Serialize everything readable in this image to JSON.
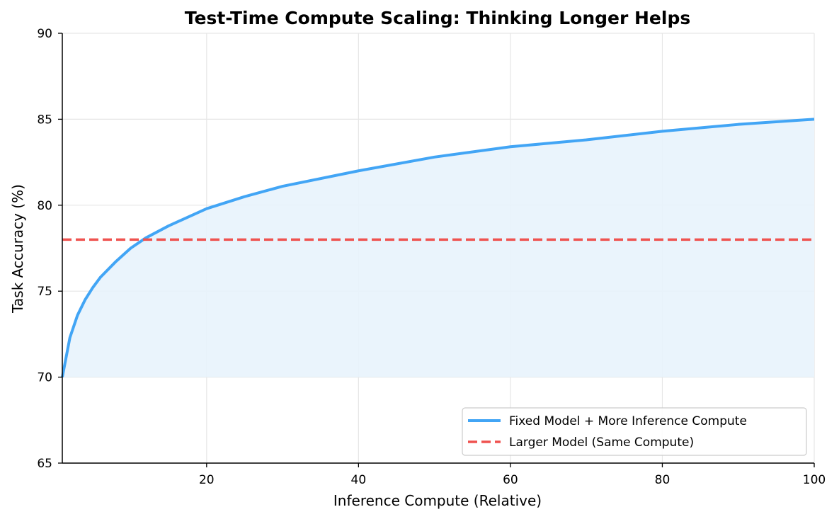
{
  "chart_data": {
    "type": "line",
    "title": "Test-Time Compute Scaling: Thinking Longer Helps",
    "xlabel": "Inference Compute (Relative)",
    "ylabel": "Task Accuracy (%)",
    "xlim": [
      1,
      100
    ],
    "ylim": [
      65,
      90
    ],
    "xticks": [
      20,
      40,
      60,
      80,
      100
    ],
    "yticks": [
      65,
      70,
      75,
      80,
      85,
      90
    ],
    "grid": true,
    "legend_position": "bottom-right",
    "fill_baseline": 70,
    "series": [
      {
        "name": "Fixed Model + More Inference Compute",
        "style": "solid",
        "color": "#42A5F5",
        "fill_color": "#E8F3FC",
        "x": [
          1,
          2,
          3,
          4,
          5,
          6,
          8,
          10,
          12,
          15,
          20,
          25,
          30,
          40,
          50,
          60,
          70,
          80,
          90,
          100
        ],
        "y": [
          70.0,
          72.3,
          73.6,
          74.5,
          75.2,
          75.8,
          76.7,
          77.5,
          78.1,
          78.8,
          79.8,
          80.5,
          81.1,
          82.0,
          82.8,
          83.4,
          83.8,
          84.3,
          84.7,
          85.0
        ]
      },
      {
        "name": "Larger Model (Same Compute)",
        "style": "dashed",
        "color": "#EF5350",
        "x": [
          1,
          100
        ],
        "y": [
          78.0,
          78.0
        ]
      }
    ]
  }
}
